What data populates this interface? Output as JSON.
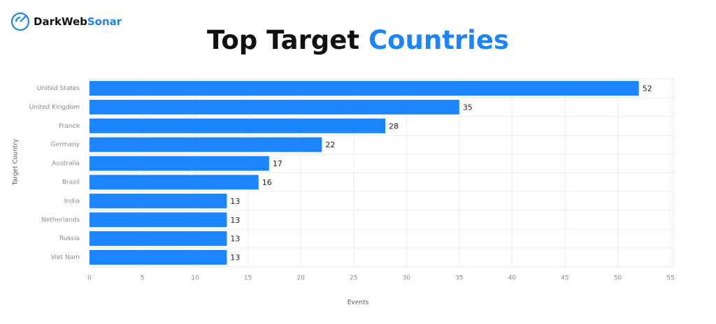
{
  "brand": "DarkWeb",
  "brand_highlight": "Sonar",
  "chart_data": {
    "type": "barh",
    "title": "Top Target",
    "title_highlight": "Countries",
    "x_label": "Events",
    "y_label": "Target Country",
    "categories": [
      "United States",
      "United Kingdom",
      "France",
      "Germany",
      "Australia",
      "Brazil",
      "India",
      "Netherlands",
      "Russia",
      "Viet Nam"
    ],
    "values": [
      52,
      35,
      28,
      22,
      17,
      16,
      13,
      13,
      13,
      13
    ],
    "color": "#1a85ff",
    "highlight_color": "#1a85ff",
    "xlim": [
      0,
      55
    ],
    "xticks": [
      0,
      5,
      10,
      15,
      20,
      25,
      30,
      35,
      40,
      45,
      50,
      55
    ],
    "grid": true
  }
}
